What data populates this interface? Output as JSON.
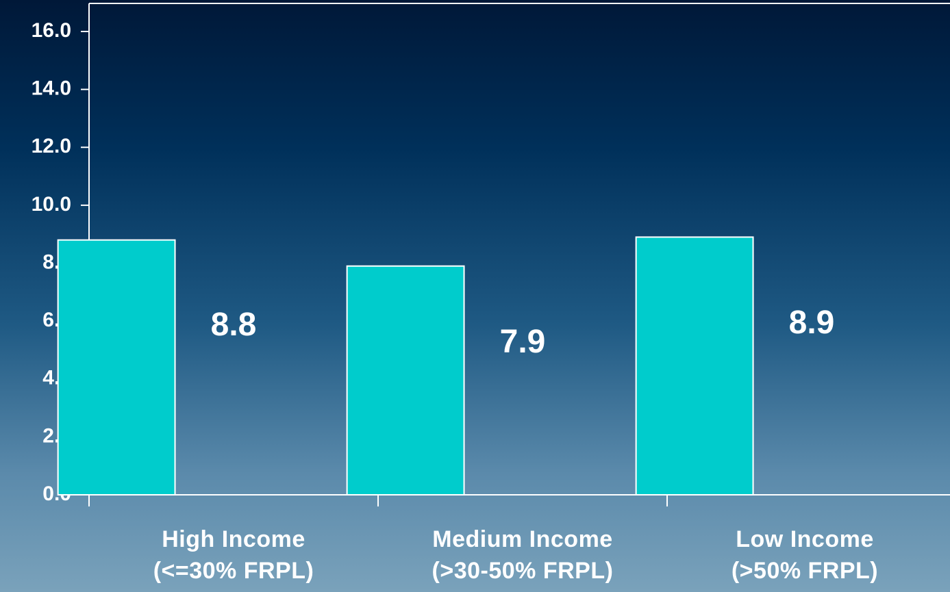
{
  "chart_data": {
    "type": "bar",
    "categories": [
      "High Income\n(<=30% FRPL)",
      "Medium Income\n(>30-50% FRPL)",
      "Low Income\n(>50% FRPL)"
    ],
    "values": [
      8.8,
      7.9,
      8.9
    ],
    "color": "#00cccc",
    "ylim": [
      0,
      16
    ],
    "yticks": [
      {
        "value": 0,
        "label": "0.0"
      },
      {
        "value": 2,
        "label": "2.0"
      },
      {
        "value": 4,
        "label": "4.0"
      },
      {
        "value": 6,
        "label": "6.0"
      },
      {
        "value": 8,
        "label": "8.0"
      },
      {
        "value": 10,
        "label": "10.0"
      },
      {
        "value": 12,
        "label": "12.0"
      },
      {
        "value": 14,
        "label": "14.0"
      },
      {
        "value": 16,
        "label": "16.0"
      }
    ],
    "grid": false
  }
}
